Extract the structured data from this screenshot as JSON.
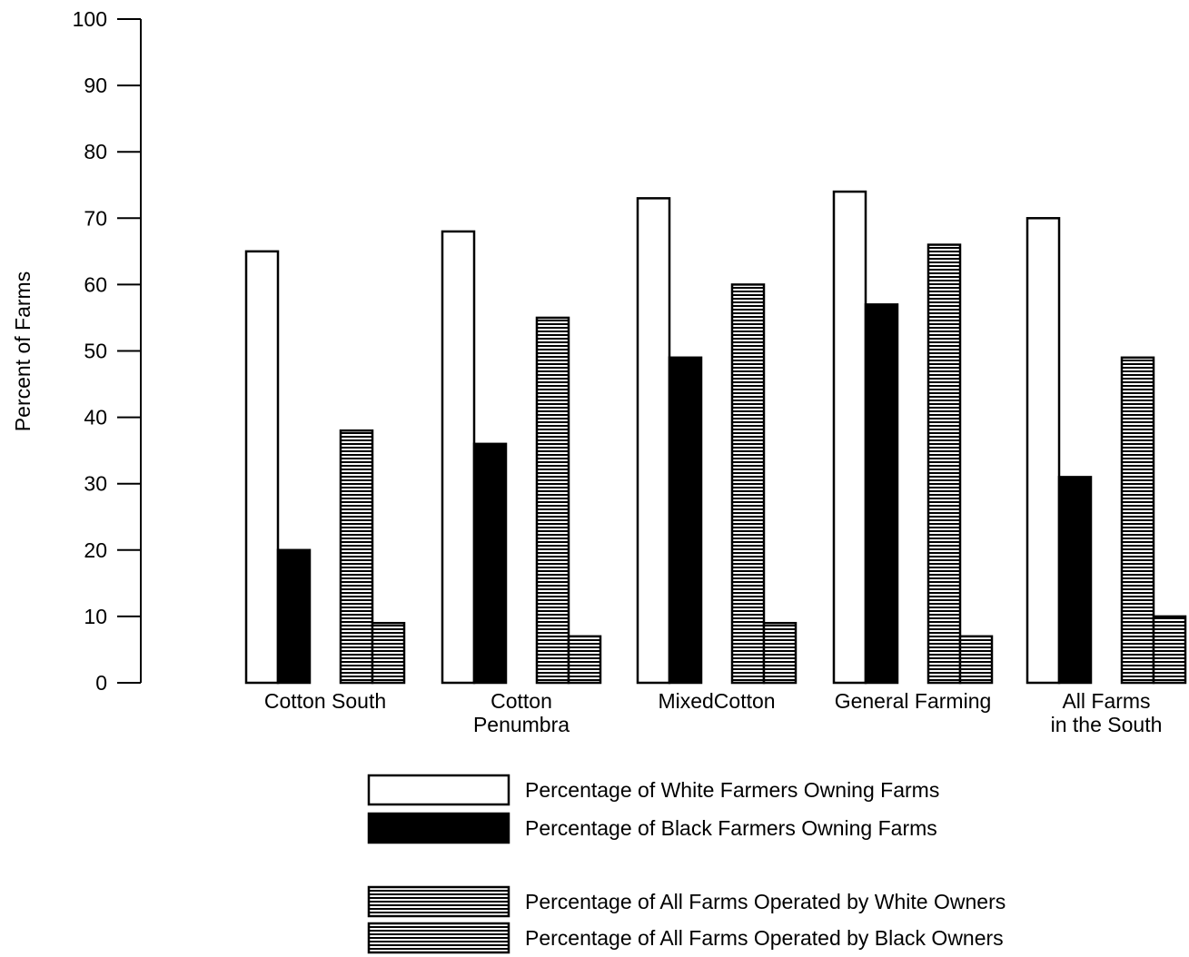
{
  "chart_data": {
    "type": "bar",
    "title": "",
    "xlabel": "",
    "ylabel": "Percent of Farms",
    "ylim": [
      0,
      100
    ],
    "yticks": [
      0,
      10,
      20,
      30,
      40,
      50,
      60,
      70,
      80,
      90,
      100
    ],
    "categories": [
      [
        "Cotton South"
      ],
      [
        "Cotton",
        "Penumbra"
      ],
      [
        "MixedCotton"
      ],
      [
        "General Farming"
      ],
      [
        "All Farms",
        "in the South"
      ]
    ],
    "series": [
      {
        "name": "Percentage of White Farmers Owning Farms",
        "fill": "white",
        "values": [
          65,
          68,
          73,
          74,
          70
        ]
      },
      {
        "name": "Percentage of Black Farmers Owning Farms",
        "fill": "black",
        "values": [
          20,
          36,
          49,
          57,
          31
        ]
      },
      {
        "name": "Percentage of All Farms Operated by White Owners",
        "fill": "hatch",
        "values": [
          38,
          55,
          60,
          66,
          49
        ]
      },
      {
        "name": "Percentage of All Farms Operated by Black Owners",
        "fill": "hatch",
        "values": [
          9,
          7,
          9,
          7,
          10
        ]
      }
    ],
    "grid": false,
    "legend_position": "bottom"
  }
}
